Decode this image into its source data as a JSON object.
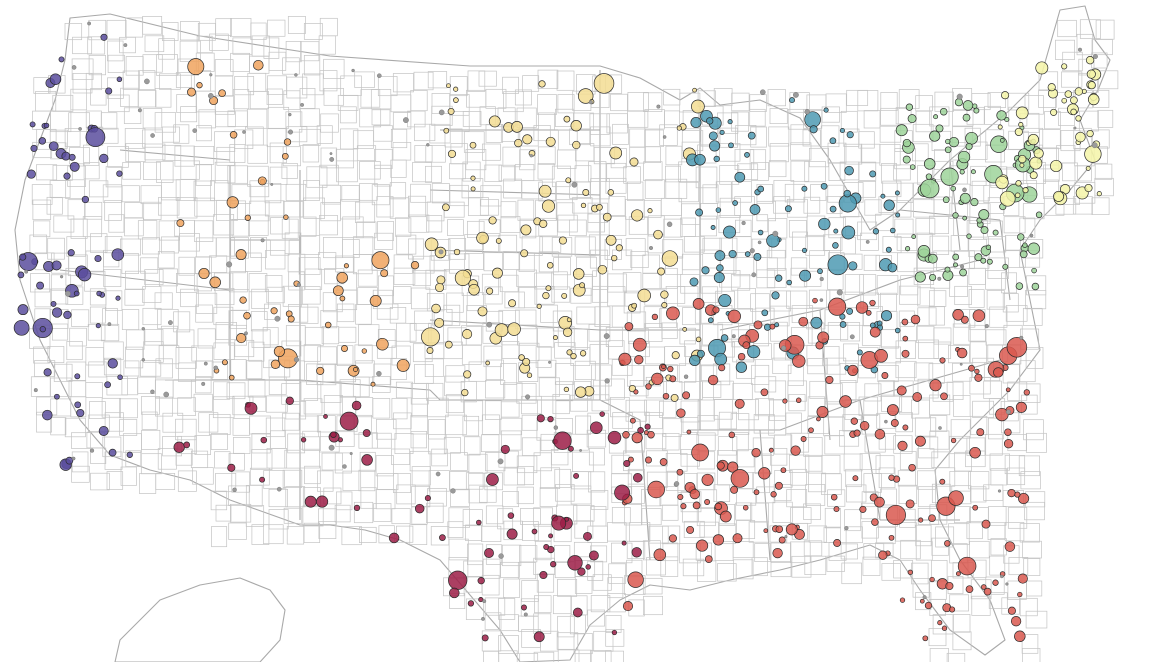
{
  "map": {
    "type": "us-county-bubble-map",
    "legend": null,
    "region_colors": {
      "pacific_west": "#5a4e9e",
      "mountain": "#f0a35e",
      "plains_north": "#f3dd93",
      "great_lakes": "#4e9ab3",
      "northeast_mid": "#9ed39a",
      "new_england": "#f4f4a8",
      "southeast": "#d9584f",
      "texas_southwest": "#9c1d47",
      "minor": "#a0a0a0"
    },
    "clusters": [
      {
        "region": "pacific_west",
        "cities": 14
      },
      {
        "region": "mountain",
        "cities": 12
      },
      {
        "region": "plains_north",
        "cities": 20
      },
      {
        "region": "great_lakes",
        "cities": 18
      },
      {
        "region": "northeast_mid",
        "cities": 16
      },
      {
        "region": "new_england",
        "cities": 12
      },
      {
        "region": "southeast",
        "cities": 40
      },
      {
        "region": "texas_southwest",
        "cities": 22
      }
    ]
  }
}
